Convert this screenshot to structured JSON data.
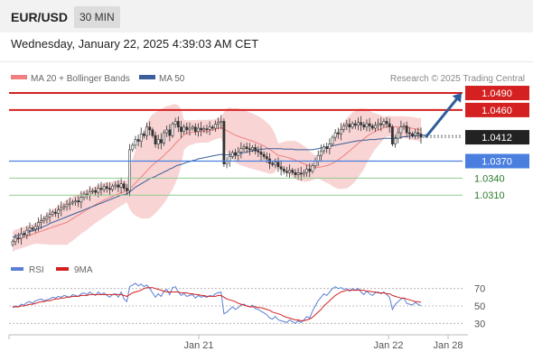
{
  "header": {
    "symbol": "EUR/USD",
    "timeframe": "30 MIN"
  },
  "timestamp": "Wednesday, January 22, 2025 4:39:03 AM CET",
  "legend": {
    "ma20_bb": "MA 20 + Bollinger Bands",
    "ma50": "MA 50"
  },
  "credit": "Research © 2025 Trading Central",
  "rsi_legend": {
    "rsi": "RSI",
    "ma9": "9MA"
  },
  "colors": {
    "up_candle": "#ffffff",
    "down_candle": "#333333",
    "bollinger_band": "#f8d4d4",
    "ma20": "#f08080",
    "ma50": "#3a5f9a",
    "resistance": "#d42020",
    "pivot": "#4a7fe0",
    "support": "#8fcc8f",
    "support_label": "#2a7a2a",
    "arrow": "#2e5c9a",
    "price_label": "#222222",
    "rsi": "#5b7fd4",
    "rsi_ma": "#d42020"
  },
  "chart_data": [
    {
      "type": "candlestick",
      "title": "EUR/USD 30 MIN",
      "ylim": [
        1.0215,
        1.0498
      ],
      "x_ticks": [
        "Jan 21",
        "Jan 22",
        "Jan 28"
      ],
      "series": [
        {
          "name": "MA 20 + Bollinger Bands"
        },
        {
          "name": "MA 50"
        }
      ],
      "levels": [
        {
          "value": "1.0490",
          "kind": "resistance"
        },
        {
          "value": "1.0460",
          "kind": "resistance"
        },
        {
          "value": "1.0412",
          "kind": "last"
        },
        {
          "value": "1.0370",
          "kind": "pivot"
        },
        {
          "value": "1.0340",
          "kind": "support"
        },
        {
          "value": "1.0310",
          "kind": "support"
        }
      ],
      "closes": [
        1.0228,
        1.0235,
        1.0234,
        1.0242,
        1.024,
        1.0248,
        1.0252,
        1.025,
        1.0255,
        1.0262,
        1.0265,
        1.0268,
        1.0272,
        1.0276,
        1.028,
        1.0278,
        1.0284,
        1.0288,
        1.029,
        1.0294,
        1.0296,
        1.0298,
        1.03,
        1.0298,
        1.0306,
        1.0312,
        1.031,
        1.0316,
        1.0318,
        1.0315,
        1.0322,
        1.032,
        1.0325,
        1.0322,
        1.032,
        1.0326,
        1.0328,
        1.0324,
        1.033,
        1.0322,
        1.0318,
        1.039,
        1.0398,
        1.0408,
        1.0405,
        1.0418,
        1.0415,
        1.043,
        1.0425,
        1.0415,
        1.04,
        1.0408,
        1.0402,
        1.042,
        1.0425,
        1.0415,
        1.0435,
        1.044,
        1.043,
        1.0422,
        1.043,
        1.0425,
        1.0428,
        1.043,
        1.0422,
        1.0428,
        1.0425,
        1.0427,
        1.0426,
        1.043,
        1.0428,
        1.0435,
        1.0438,
        1.044,
        1.0365,
        1.037,
        1.0378,
        1.0385,
        1.038,
        1.0386,
        1.0392,
        1.0395,
        1.0392,
        1.039,
        1.0394,
        1.0388,
        1.0386,
        1.0382,
        1.0378,
        1.0374,
        1.0366,
        1.0364,
        1.0368,
        1.036,
        1.0356,
        1.0352,
        1.035,
        1.0354,
        1.035,
        1.0346,
        1.0349,
        1.0347,
        1.035,
        1.0356,
        1.0352,
        1.0362,
        1.037,
        1.038,
        1.0388,
        1.0395,
        1.0392,
        1.04,
        1.0412,
        1.042,
        1.0418,
        1.0426,
        1.0432,
        1.0435,
        1.043,
        1.0436,
        1.0433,
        1.0438,
        1.0434,
        1.043,
        1.0436,
        1.0432,
        1.0428,
        1.0433,
        1.0436,
        1.0434,
        1.044,
        1.0436,
        1.043,
        1.04,
        1.041,
        1.042,
        1.043,
        1.0432,
        1.042,
        1.0418,
        1.0415,
        1.042,
        1.0418,
        1.0412
      ],
      "ma50": [
        1.0236,
        1.0238,
        1.0239,
        1.0241,
        1.0242,
        1.0244,
        1.0246,
        1.0247,
        1.0249,
        1.0251,
        1.0253,
        1.0255,
        1.0257,
        1.026,
        1.0262,
        1.0264,
        1.0266,
        1.0268,
        1.027,
        1.0272,
        1.0274,
        1.0276,
        1.0278,
        1.028,
        1.0282,
        1.0284,
        1.0286,
        1.0288,
        1.029,
        1.0292,
        1.0294,
        1.0296,
        1.0298,
        1.03,
        1.0302,
        1.0304,
        1.0306,
        1.0308,
        1.031,
        1.0311,
        1.0312,
        1.0316,
        1.032,
        1.0324,
        1.0327,
        1.033,
        1.0333,
        1.0336,
        1.0339,
        1.0341,
        1.0343,
        1.0346,
        1.0348,
        1.0351,
        1.0353,
        1.0356,
        1.0358,
        1.0361,
        1.0363,
        1.0364,
        1.0366,
        1.0368,
        1.0369,
        1.0371,
        1.0372,
        1.0374,
        1.0375,
        1.0376,
        1.0377,
        1.0378,
        1.0379,
        1.038,
        1.0381,
        1.0382,
        1.0381,
        1.0381,
        1.0381,
        1.0382,
        1.0382,
        1.0383,
        1.0384,
        1.0385,
        1.0386,
        1.0387,
        1.0388,
        1.0389,
        1.039,
        1.0391,
        1.0391,
        1.0392,
        1.0392,
        1.0392,
        1.0392,
        1.0392,
        1.0392,
        1.0391,
        1.0391,
        1.0391,
        1.0391,
        1.039,
        1.039,
        1.039,
        1.039,
        1.039,
        1.039,
        1.039,
        1.0391,
        1.0392,
        1.0393,
        1.0394,
        1.0395,
        1.0396,
        1.0397,
        1.0398,
        1.0399,
        1.04,
        1.0401,
        1.0402,
        1.0403,
        1.0404,
        1.0405,
        1.0406,
        1.0406,
        1.0407,
        1.0407,
        1.0408,
        1.0408,
        1.0408,
        1.0409,
        1.0409,
        1.041,
        1.041,
        1.041,
        1.041,
        1.0411,
        1.0411,
        1.0412,
        1.0413,
        1.0413,
        1.0414,
        1.0414,
        1.0414,
        1.0415,
        1.0415,
        1.0416,
        1.0416
      ]
    },
    {
      "type": "line",
      "title": "RSI",
      "ylim": [
        20,
        80
      ],
      "y_ticks": [
        "70",
        "50",
        "30"
      ],
      "series": [
        {
          "name": "RSI",
          "values": [
            48,
            50,
            49,
            52,
            51,
            54,
            55,
            53,
            56,
            57,
            58,
            56,
            57,
            58,
            60,
            59,
            61,
            60,
            62,
            61,
            60,
            63,
            62,
            61,
            64,
            65,
            63,
            66,
            64,
            62,
            66,
            63,
            65,
            62,
            60,
            63,
            64,
            60,
            66,
            58,
            55,
            72,
            74,
            76,
            73,
            75,
            72,
            74,
            70,
            65,
            60,
            64,
            61,
            67,
            69,
            63,
            71,
            72,
            66,
            62,
            64,
            61,
            62,
            63,
            59,
            62,
            60,
            61,
            60,
            62,
            61,
            64,
            65,
            66,
            41,
            43,
            46,
            49,
            46,
            48,
            51,
            52,
            50,
            49,
            51,
            47,
            46,
            44,
            42,
            40,
            36,
            35,
            38,
            34,
            33,
            32,
            31,
            34,
            32,
            30,
            33,
            31,
            34,
            38,
            36,
            44,
            50,
            56,
            60,
            64,
            62,
            66,
            70,
            72,
            70,
            71,
            69,
            70,
            67,
            70,
            68,
            70,
            66,
            63,
            67,
            64,
            62,
            65,
            66,
            64,
            66,
            63,
            60,
            46,
            52,
            55,
            58,
            59,
            53,
            52,
            51,
            54,
            52,
            50
          ]
        },
        {
          "name": "9MA",
          "values": [
            49,
            49,
            49,
            50,
            50,
            51,
            52,
            52,
            53,
            54,
            55,
            55,
            56,
            56,
            57,
            58,
            58,
            59,
            59,
            60,
            60,
            61,
            61,
            61,
            62,
            62,
            62,
            63,
            63,
            63,
            63,
            63,
            63,
            63,
            63,
            63,
            63,
            63,
            63,
            62,
            61,
            63,
            65,
            66,
            67,
            68,
            70,
            71,
            71,
            71,
            70,
            69,
            68,
            67,
            66,
            66,
            66,
            66,
            66,
            65,
            65,
            65,
            64,
            64,
            63,
            63,
            62,
            62,
            61,
            61,
            61,
            61,
            62,
            62,
            60,
            58,
            57,
            56,
            55,
            53,
            52,
            51,
            50,
            49,
            49,
            49,
            48,
            48,
            47,
            46,
            45,
            43,
            42,
            41,
            40,
            38,
            37,
            36,
            35,
            34,
            34,
            33,
            33,
            34,
            35,
            37,
            40,
            43,
            46,
            50,
            53,
            56,
            59,
            62,
            64,
            66,
            67,
            68,
            68,
            68,
            68,
            68,
            68,
            68,
            67,
            67,
            66,
            66,
            65,
            65,
            65,
            64,
            64,
            62,
            61,
            60,
            59,
            59,
            58,
            57,
            56,
            55,
            55,
            54
          ]
        }
      ]
    }
  ]
}
